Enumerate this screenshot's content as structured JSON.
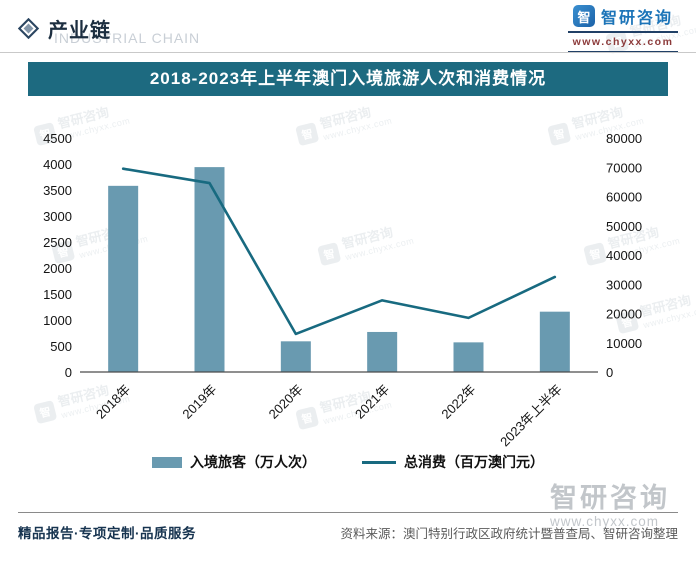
{
  "header": {
    "section_title": "产业链",
    "section_watermark": "INDUSTRIAL CHAIN",
    "brand_name": "智研咨询",
    "brand_url": "www.chyxx.com"
  },
  "banner_title": "2018-2023年上半年澳门入境旅游人次和消费情况",
  "chart_data": {
    "type": "bar",
    "subtype": "combo-bar-line",
    "title": "2018-2023年上半年澳门入境旅游人次和消费情况",
    "categories": [
      "2018年",
      "2019年",
      "2020年",
      "2021年",
      "2022年",
      "2023年上半年"
    ],
    "series": [
      {
        "name": "入境旅客（万人次）",
        "type": "bar",
        "axis": "left",
        "values": [
          3580,
          3940,
          590,
          770,
          570,
          1160
        ]
      },
      {
        "name": "总消费（百万澳门元）",
        "type": "line",
        "axis": "right",
        "values": [
          69500,
          64600,
          13000,
          24500,
          18500,
          32500
        ]
      }
    ],
    "left_axis": {
      "min": 0,
      "max": 4500,
      "step": 500
    },
    "right_axis": {
      "min": 0,
      "max": 80000,
      "step": 10000
    },
    "grid": false,
    "legend_position": "bottom",
    "colors": {
      "bar": "#699ab0",
      "line": "#186a80"
    }
  },
  "footer": {
    "services": "精品报告·专项定制·品质服务",
    "source": "资料来源：澳门特别行政区政府统计暨普查局、智研咨询整理"
  },
  "watermark": {
    "brand": "智研咨询",
    "url": "www.chyxx.com"
  }
}
